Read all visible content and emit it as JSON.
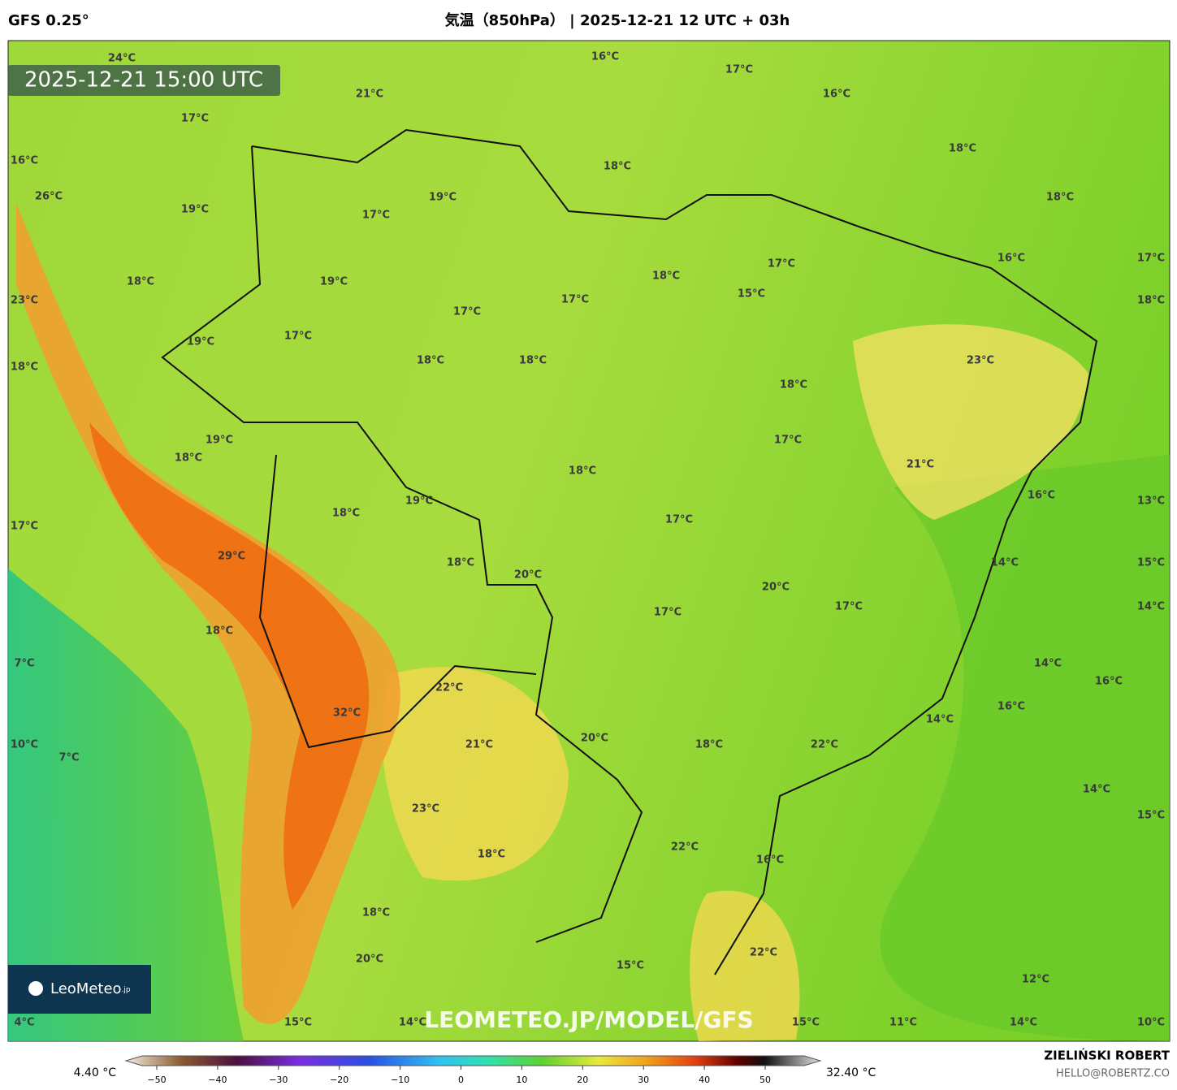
{
  "header": {
    "left": "GFS 0.25°",
    "title": "気温（850hPa） | 2025-12-21 12 UTC + 03h"
  },
  "map": {
    "timestamp": "2025-12-21 15:00 UTC",
    "watermark": "LEOMETEO.JP/MODEL/GFS",
    "logo": "LeoMeteo",
    "logo_suffix": ".jp",
    "labels": [
      "24°C",
      "16°C",
      "17°C",
      "21°C",
      "16°C",
      "17°C",
      "18°C",
      "16°C",
      "18°C",
      "26°C",
      "19°C",
      "18°C",
      "19°C",
      "17°C",
      "17°C",
      "16°C",
      "17°C",
      "18°C",
      "18°C",
      "19°C",
      "15°C",
      "23°C",
      "17°C",
      "18°C",
      "17°C",
      "17°C",
      "19°C",
      "18°C",
      "18°C",
      "23°C",
      "18°C",
      "18°C",
      "17°C",
      "19°C",
      "21°C",
      "18°C",
      "18°C",
      "16°C",
      "13°C",
      "19°C",
      "18°C",
      "17°C",
      "17°C",
      "14°C",
      "15°C",
      "29°C",
      "18°C",
      "20°C",
      "20°C",
      "17°C",
      "14°C",
      "17°C",
      "18°C",
      "7°C",
      "14°C",
      "16°C",
      "22°C",
      "16°C",
      "32°C",
      "14°C",
      "20°C",
      "10°C",
      "21°C",
      "18°C",
      "22°C",
      "7°C",
      "14°C",
      "23°C",
      "15°C",
      "22°C",
      "18°C",
      "16°C",
      "18°C",
      "22°C",
      "20°C",
      "15°C",
      "12°C",
      "4°C",
      "15°C",
      "14°C",
      "15°C",
      "11°C",
      "14°C",
      "10°C"
    ]
  },
  "legend": {
    "min_label": "4.40 °C",
    "max_label": "32.40 °C",
    "ticks": [
      {
        "value": -50,
        "label": "−50"
      },
      {
        "value": -40,
        "label": "−40"
      },
      {
        "value": -30,
        "label": "−30"
      },
      {
        "value": -20,
        "label": "−20"
      },
      {
        "value": -10,
        "label": "−10"
      },
      0,
      10,
      20,
      30,
      40,
      50
    ]
  },
  "credit": {
    "name": "ZIELIŃSKI ROBERT",
    "email": "HELLO@ROBERTZ.CO"
  }
}
